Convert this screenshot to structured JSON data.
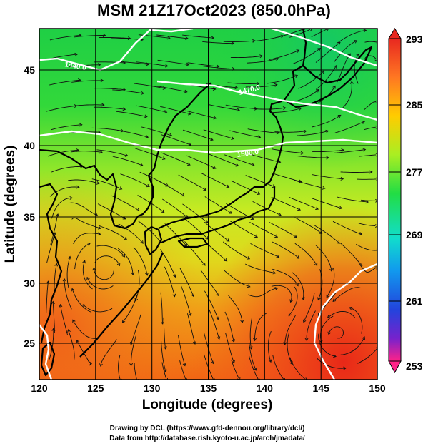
{
  "title": "MSM 21Z17Oct2023 (850.0hPa)",
  "axes": {
    "xlabel": "Longitude (degrees)",
    "ylabel": "Latitude  (degrees)",
    "xticks": [
      "120",
      "125",
      "130",
      "135",
      "140",
      "145",
      "150"
    ],
    "yticks": [
      "25",
      "30",
      "35",
      "40",
      "45"
    ],
    "xlim": [
      120,
      150
    ],
    "ylim": [
      22.4,
      47.6
    ]
  },
  "colorbar": {
    "ticks": [
      "293",
      "285",
      "277",
      "269",
      "261",
      "253"
    ],
    "range": [
      253,
      293
    ],
    "colors": [
      "#ff2288",
      "#7722cc",
      "#2244dd",
      "#1199ee",
      "#11ddcc",
      "#22dd44",
      "#aaee22",
      "#ffcc00",
      "#ff7722",
      "#e82820"
    ]
  },
  "contour_labels": [
    "1440.0",
    "1470.0",
    "1500.0"
  ],
  "credits": {
    "line1": "Drawing by DCL (https://www.gfd-dennou.org/library/dcl/)",
    "line2": "Data from http://database.rish.kyoto-u.ac.jp/arch/jmadata/"
  }
}
